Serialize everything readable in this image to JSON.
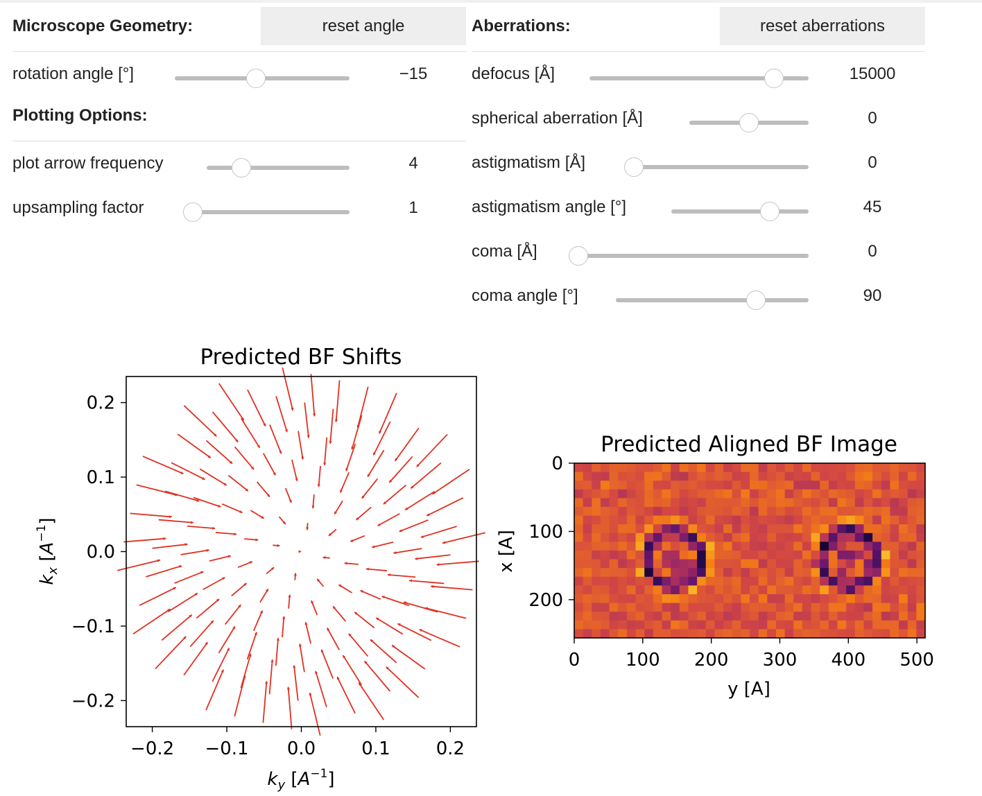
{
  "microscope": {
    "title": "Microscope Geometry:",
    "reset_label": "reset angle",
    "rotation": {
      "label": "rotation angle [°]",
      "value": "−15",
      "min": -180,
      "max": 180,
      "level": -15
    }
  },
  "plotting": {
    "title": "Plotting Options:",
    "arrow_frequency": {
      "label": "plot arrow frequency",
      "value": "4",
      "min": 1,
      "max": 16,
      "level": 4
    },
    "upsampling": {
      "label": "upsampling factor",
      "value": "1",
      "min": 1,
      "max": 8,
      "level": 1
    }
  },
  "aberrations": {
    "title": "Aberrations:",
    "reset_label": "reset aberrations",
    "defocus": {
      "label": "defocus [Å]",
      "value": "15000",
      "min": -20000,
      "max": 20000,
      "level": 15000
    },
    "spherical": {
      "label": "spherical aberration [Å]",
      "value": "0",
      "min": -100000,
      "max": 100000,
      "level": 0
    },
    "astigmatism": {
      "label": "astigmatism [Å]",
      "value": "0",
      "min": 0,
      "max": 5000,
      "level": 0
    },
    "astig_angle": {
      "label": "astigmatism angle [°]",
      "value": "45",
      "min": -90,
      "max": 90,
      "level": 45
    },
    "coma": {
      "label": "coma [Å]",
      "value": "0",
      "min": 0,
      "max": 5000,
      "level": 0
    },
    "coma_angle": {
      "label": "coma angle [°]",
      "value": "90",
      "min": -180,
      "max": 180,
      "level": 90
    }
  },
  "colors": {
    "arrow": "#e03020",
    "track": "#bdbdbd",
    "button_bg": "#eeeeee"
  },
  "chart_data": [
    {
      "type": "quiver",
      "title": "Predicted BF Shifts",
      "xlabel": "k_y [A^-1]",
      "ylabel": "k_x [A^-1]",
      "xlim": [
        -0.235,
        0.235
      ],
      "ylim": [
        -0.235,
        0.235
      ],
      "xticks": [
        "−0.2",
        "−0.1",
        "0.0",
        "0.1",
        "0.2"
      ],
      "yticks": [
        "0.2",
        "0.1",
        "0.0",
        "−0.1",
        "−0.2"
      ],
      "xtick_values": [
        -0.2,
        -0.1,
        0.0,
        0.1,
        0.2
      ],
      "ytick_values": [
        0.2,
        0.1,
        0.0,
        -0.1,
        -0.2
      ],
      "grid": false,
      "rotation_deg": -15,
      "sampling_spacing": 0.03,
      "aperture_radius": 0.2
    },
    {
      "type": "heatmap",
      "title": "Predicted Aligned BF Image",
      "xlabel": "y [A]",
      "ylabel": "x [A]",
      "xlim": [
        0,
        512
      ],
      "ylim": [
        256,
        0
      ],
      "xticks": [
        "0",
        "100",
        "200",
        "300",
        "400",
        "500"
      ],
      "yticks": [
        "0",
        "100",
        "200"
      ],
      "xtick_values": [
        0,
        100,
        200,
        300,
        400,
        500
      ],
      "ytick_values": [
        0,
        100,
        200
      ],
      "colormap": "magma",
      "rings": [
        {
          "center_y": 145,
          "center_x": 140,
          "radius": 50
        },
        {
          "center_y": 400,
          "center_x": 140,
          "radius": 50
        }
      ]
    }
  ]
}
